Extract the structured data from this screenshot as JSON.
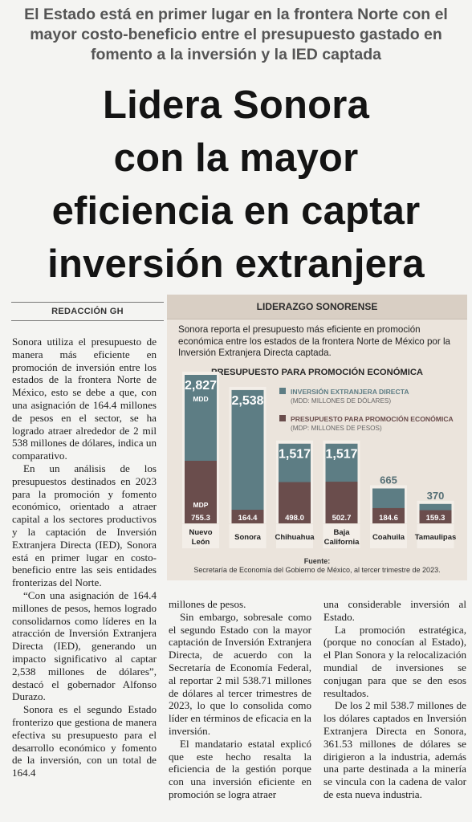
{
  "kicker": "El Estado está en primer lugar en la frontera Norte con el mayor costo-beneficio entre el presupuesto gastado en fomento a la inversión y la IED captada",
  "headline": [
    "Lidera Sonora",
    "con la mayor",
    "eficiencia en captar",
    "inversión extranjera"
  ],
  "byline": "REDACCIÓN GH",
  "infobox": {
    "header": "LIDERAZGO SONORENSE",
    "intro": "Sonora reporta el presupuesto más eficiente en promoción económica entre los estados de la frontera Norte de México por la Inversión Extranjera Directa captada.",
    "source_label": "Fuente:",
    "source_text": "Secretaría de Economía del Gobierno de México, al tercer trimestre de 2023."
  },
  "chart_data": {
    "type": "bar",
    "title": "PRESUPUESTO PARA PROMOCIÓN ECONÓMICA",
    "categories": [
      "Nuevo León",
      "Sonora",
      "Chihuahua",
      "Baja California",
      "Coahuila",
      "Tamaulipas"
    ],
    "category_lines": [
      [
        "Nuevo",
        "León"
      ],
      [
        "Sonora"
      ],
      [
        "Chihuahua"
      ],
      [
        "Baja",
        "California"
      ],
      [
        "Coahuila"
      ],
      [
        "Tamaulipas"
      ]
    ],
    "series": [
      {
        "name": "INVERSIÓN EXTRANJERA DIRECTA",
        "unit_note": "(MDD: MILLONES DE DÓLARES)",
        "unit_tag": "MDD",
        "values": [
          2827,
          2538,
          1517,
          1517,
          665,
          370
        ],
        "labels": [
          "2,827",
          "2,538",
          "1,517",
          "1,517",
          "665",
          "370"
        ],
        "color": "#5d7d84"
      },
      {
        "name": "PRESUPUESTO PARA PROMOCIÓN ECONÓMICA",
        "unit_note": "(MDP: MILLONES DE PESOS)",
        "unit_tag": "MDP",
        "values": [
          755.3,
          164.4,
          498.0,
          502.7,
          184.6,
          159.3
        ],
        "labels": [
          "755.3",
          "164.4",
          "498.0",
          "502.7",
          "184.6",
          "159.3"
        ],
        "color": "#6a4d4c"
      }
    ]
  },
  "article": {
    "col1": [
      "Sonora utiliza el presupuesto de manera más eficiente en promoción de inversión entre los estados de la frontera Norte de México, esto se debe a que, con una asignación de 164.4 millones de pesos en el sector, se ha logrado atraer alrededor de 2 mil 538 millones de dólares, indica un comparativo.",
      "En un análisis de los presupuestos destinados en 2023 para la promoción y fomento económico, orientado a atraer capital a los sectores productivos y la captación de Inversión Extranjera Directa (IED), Sonora está en primer lugar en costo-beneficio entre las seis entidades fronterizas del Norte.",
      "“Con una asignación de 164.4 millones de pesos, hemos logrado consolidarnos como líderes en la atracción de Inversión Extranjera Directa (IED), generando un impacto significativo al captar 2,538 millones de dólares”, destacó el gobernador Alfonso Durazo.",
      "Sonora es el segundo Estado fronterizo que gestiona de manera efectiva su presupuesto para el desarrollo económico y fomento de la inversión, con un total de 164.4"
    ],
    "col2": [
      "millones de pesos.",
      "Sin embargo, sobresale como el segundo Estado con la mayor captación de Inversión Extranjera Directa, de acuerdo con la Secretaría de Economía Federal, al reportar 2 mil 538.71 millones de dólares al tercer trimestres de 2023, lo que lo consolida como líder en términos de eficacia en la inversión.",
      "El mandatario estatal explicó que este hecho resalta la eficiencia de la gestión porque con una inversión eficiente en promoción se logra atraer"
    ],
    "col3": [
      "una considerable inversión al Estado.",
      "La promoción estratégica, (porque no conocían al Estado), el Plan Sonora y la relocalización mundial de inversiones se conjugan para que se den esos resultados.",
      "De los 2 mil 538.7 millones de los dólares captados en Inversión Extranjera Directa en Sonora, 361.53 millones de dólares se dirigieron a la industria, además una parte destinada a la minería se vincula con la cadena de valor de esta nueva industria."
    ]
  }
}
